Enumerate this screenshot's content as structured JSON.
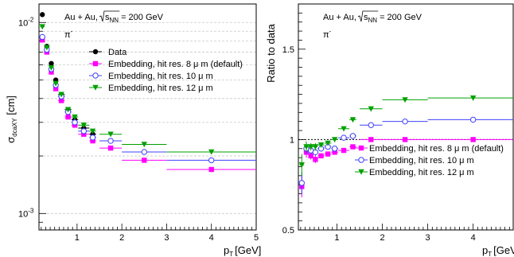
{
  "chart_data": [
    {
      "type": "scatter",
      "panel": "left",
      "ylabel": "σ",
      "ylabel_sub": "dcaXY",
      "ylabel_unit": "[cm]",
      "xlabel": "p",
      "xlabel_sub": "T",
      "xlabel_unit": "[GeV]",
      "xlim": [
        0.15,
        5
      ],
      "ylim": [
        0.00082,
        0.0125
      ],
      "yscale": "log",
      "x_ticks": [
        "1",
        "2",
        "3",
        "4",
        "5"
      ],
      "y_ticks": [
        "10",
        "10"
      ],
      "y_tick_exponents": [
        "-2",
        "-3"
      ],
      "annotation_line1": "Au + Au, ",
      "annotation_sqrt": "s",
      "annotation_sqrt_sub": "NN",
      "annotation_energy": " = 200 GeV",
      "annotation_particle": "π",
      "annotation_particle_sup": "-",
      "grid": "horizontal dashed",
      "legend_position": "top-center",
      "series": [
        {
          "name": "Data",
          "color": "#000000",
          "marker": "circle-filled",
          "x": [
            0.225,
            0.325,
            0.425,
            0.525,
            0.65,
            0.8,
            0.95,
            1.15,
            1.35
          ],
          "xerr": [
            0.05,
            0.05,
            0.05,
            0.05,
            0.075,
            0.075,
            0.075,
            0.125,
            0.075
          ],
          "y": [
            0.011,
            0.0075,
            0.0061,
            0.005,
            0.0042,
            0.0035,
            0.0031,
            0.0028,
            0.0026
          ]
        },
        {
          "name": "Embedding, hit res. 8 μ m (default)",
          "color": "#ff00ff",
          "marker": "square-filled",
          "x": [
            0.225,
            0.325,
            0.425,
            0.525,
            0.65,
            0.8,
            0.95,
            1.15,
            1.35,
            1.75,
            2.5,
            4.0
          ],
          "xerr": [
            0.05,
            0.05,
            0.05,
            0.05,
            0.075,
            0.075,
            0.075,
            0.125,
            0.075,
            0.25,
            0.5,
            1.0
          ],
          "y": [
            0.0081,
            0.007,
            0.0055,
            0.0045,
            0.0039,
            0.0032,
            0.0029,
            0.0026,
            0.0024,
            0.0022,
            0.0019,
            0.0017
          ]
        },
        {
          "name": "Embedding, hit res. 10 μ m",
          "color": "#4040ff",
          "marker": "circle-open",
          "x": [
            0.225,
            0.325,
            0.425,
            0.525,
            0.65,
            0.8,
            0.95,
            1.15,
            1.35,
            1.75,
            2.5,
            4.0
          ],
          "xerr": [
            0.05,
            0.05,
            0.05,
            0.05,
            0.075,
            0.075,
            0.075,
            0.125,
            0.075,
            0.25,
            0.5,
            1.0
          ],
          "y": [
            0.0084,
            0.0072,
            0.0057,
            0.0047,
            0.0041,
            0.0034,
            0.003,
            0.0027,
            0.0025,
            0.0024,
            0.0021,
            0.0019
          ]
        },
        {
          "name": "Embedding, hit res. 12 μ m",
          "color": "#00a000",
          "marker": "triangle-down-filled",
          "x": [
            0.225,
            0.325,
            0.425,
            0.525,
            0.65,
            0.8,
            0.95,
            1.15,
            1.35,
            1.75,
            2.5,
            4.0
          ],
          "xerr": [
            0.05,
            0.05,
            0.05,
            0.05,
            0.075,
            0.075,
            0.075,
            0.125,
            0.075,
            0.25,
            0.5,
            1.0
          ],
          "y": [
            0.0095,
            0.0074,
            0.0058,
            0.0048,
            0.0042,
            0.0035,
            0.0032,
            0.0029,
            0.0027,
            0.0026,
            0.0023,
            0.0021
          ]
        }
      ]
    },
    {
      "type": "scatter",
      "panel": "right",
      "ylabel": "Ratio to data",
      "xlabel": "p",
      "xlabel_sub": "T",
      "xlabel_unit": "[GeV]",
      "xlim": [
        0.15,
        4.9
      ],
      "ylim": [
        0.5,
        1.75
      ],
      "x_ticks": [
        "1",
        "2",
        "3",
        "4"
      ],
      "y_ticks": [
        "0.5",
        "1",
        "1.5"
      ],
      "reference_line": 1.0,
      "annotation_line1": "Au + Au, ",
      "annotation_sqrt": "s",
      "annotation_sqrt_sub": "NN",
      "annotation_energy": " = 200 GeV",
      "annotation_particle": "π",
      "annotation_particle_sup": "-",
      "legend_position": "bottom-center",
      "series": [
        {
          "name": "Embedding, hit res. 8 μ m (default)",
          "color": "#ff00ff",
          "marker": "square-filled",
          "x": [
            0.225,
            0.325,
            0.425,
            0.525,
            0.65,
            0.8,
            0.95,
            1.15,
            1.35,
            1.75,
            2.5,
            4.0
          ],
          "xerr": [
            0.05,
            0.05,
            0.05,
            0.05,
            0.075,
            0.075,
            0.075,
            0.125,
            0.075,
            0.25,
            0.5,
            1.0
          ],
          "y": [
            0.74,
            0.93,
            0.91,
            0.89,
            0.91,
            0.92,
            0.93,
            0.94,
            0.96,
            1.0,
            1.0,
            1.0
          ],
          "yerr": [
            0.06,
            0.03,
            0.02,
            0.02,
            0.01,
            0.01,
            0.01,
            0.01,
            0.01,
            0.01,
            0.01,
            0.01
          ]
        },
        {
          "name": "Embedding, hit res. 10 μ m",
          "color": "#4040ff",
          "marker": "circle-open",
          "x": [
            0.225,
            0.325,
            0.425,
            0.525,
            0.65,
            0.8,
            0.95,
            1.15,
            1.35,
            1.75,
            2.5,
            4.0
          ],
          "xerr": [
            0.05,
            0.05,
            0.05,
            0.05,
            0.075,
            0.075,
            0.075,
            0.125,
            0.075,
            0.25,
            0.5,
            1.0
          ],
          "y": [
            0.76,
            0.95,
            0.94,
            0.93,
            0.95,
            0.96,
            0.95,
            1.01,
            1.02,
            1.08,
            1.1,
            1.11
          ],
          "yerr": [
            0.06,
            0.03,
            0.02,
            0.02,
            0.01,
            0.01,
            0.01,
            0.01,
            0.01,
            0.01,
            0.01,
            0.01
          ]
        },
        {
          "name": "Embedding, hit res. 12 μ m",
          "color": "#00a000",
          "marker": "triangle-down-filled",
          "x": [
            0.225,
            0.325,
            0.425,
            0.525,
            0.65,
            0.8,
            0.95,
            1.15,
            1.35,
            1.75,
            2.5,
            4.0
          ],
          "xerr": [
            0.05,
            0.05,
            0.05,
            0.05,
            0.075,
            0.075,
            0.075,
            0.125,
            0.075,
            0.25,
            0.5,
            1.0
          ],
          "y": [
            0.86,
            0.96,
            0.96,
            0.96,
            0.97,
            0.98,
            1.0,
            1.06,
            1.11,
            1.17,
            1.22,
            1.23
          ],
          "yerr": [
            0.06,
            0.03,
            0.02,
            0.02,
            0.01,
            0.01,
            0.01,
            0.01,
            0.01,
            0.01,
            0.01,
            0.01
          ]
        }
      ]
    }
  ]
}
